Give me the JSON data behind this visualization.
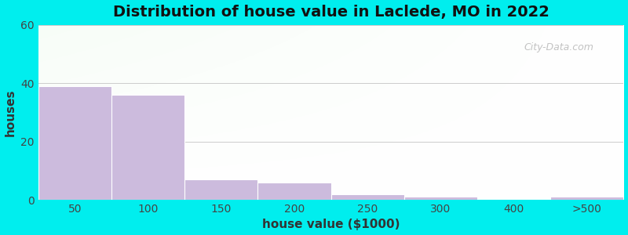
{
  "title": "Distribution of house value in Laclede, MO in 2022",
  "xlabel": "house value ($1000)",
  "ylabel": "houses",
  "categories": [
    "50",
    "100",
    "150",
    "200",
    "250",
    "300",
    "400",
    ">500"
  ],
  "values": [
    39,
    36,
    7,
    6,
    2,
    1,
    0,
    1
  ],
  "ylim": [
    0,
    60
  ],
  "yticks": [
    0,
    20,
    40,
    60
  ],
  "bar_color": "#ccbbdd",
  "bar_edge_color": "#ffffff",
  "figure_bg_color": "#00eeee",
  "title_fontsize": 14,
  "axis_label_fontsize": 11,
  "tick_fontsize": 10,
  "watermark": "City-Data.com"
}
